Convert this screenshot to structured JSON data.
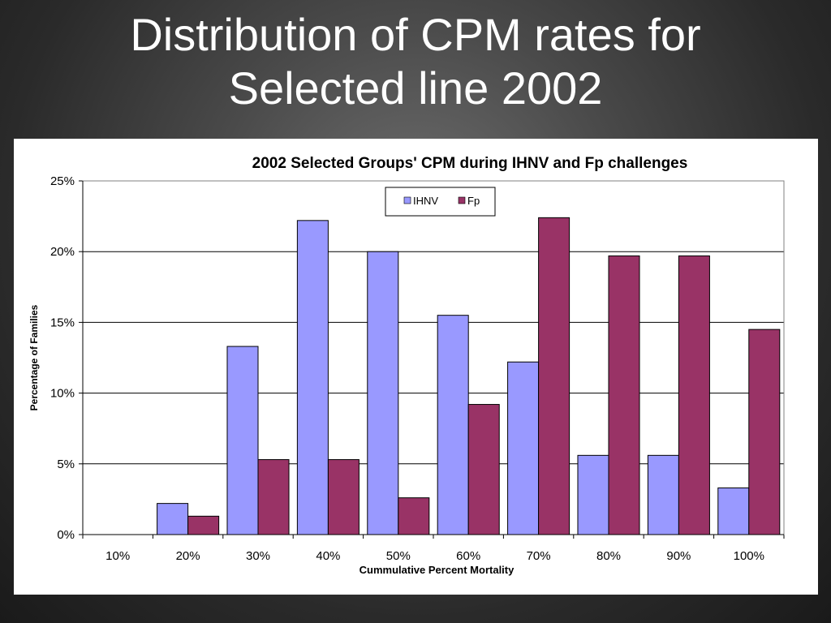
{
  "slide": {
    "title_line1": "Distribution of CPM rates for",
    "title_line2": "Selected line 2002"
  },
  "colors": {
    "background": "#3a3a3a",
    "ihnv": "#9999ff",
    "fp": "#993366",
    "gridline": "#000000"
  },
  "chart_data": {
    "type": "bar",
    "title": "2002 Selected Groups' CPM during IHNV and Fp challenges",
    "xlabel": "Cummulative Percent Mortality",
    "ylabel": "Percentage of Families",
    "categories": [
      "10%",
      "20%",
      "30%",
      "40%",
      "50%",
      "60%",
      "70%",
      "80%",
      "90%",
      "100%"
    ],
    "series": [
      {
        "name": "IHNV",
        "color": "#9999ff",
        "values": [
          0,
          2.2,
          13.3,
          22.2,
          20.0,
          15.5,
          12.2,
          5.6,
          5.6,
          3.3
        ]
      },
      {
        "name": "Fp",
        "color": "#993366",
        "values": [
          0,
          1.3,
          5.3,
          5.3,
          2.6,
          9.2,
          22.4,
          19.7,
          19.7,
          14.5
        ]
      }
    ],
    "ylim": [
      0,
      25
    ],
    "yticks": [
      0,
      5,
      10,
      15,
      20,
      25
    ],
    "ytick_labels": [
      "0%",
      "5%",
      "10%",
      "15%",
      "20%",
      "25%"
    ],
    "grid": true,
    "legend_position": "top-center"
  }
}
